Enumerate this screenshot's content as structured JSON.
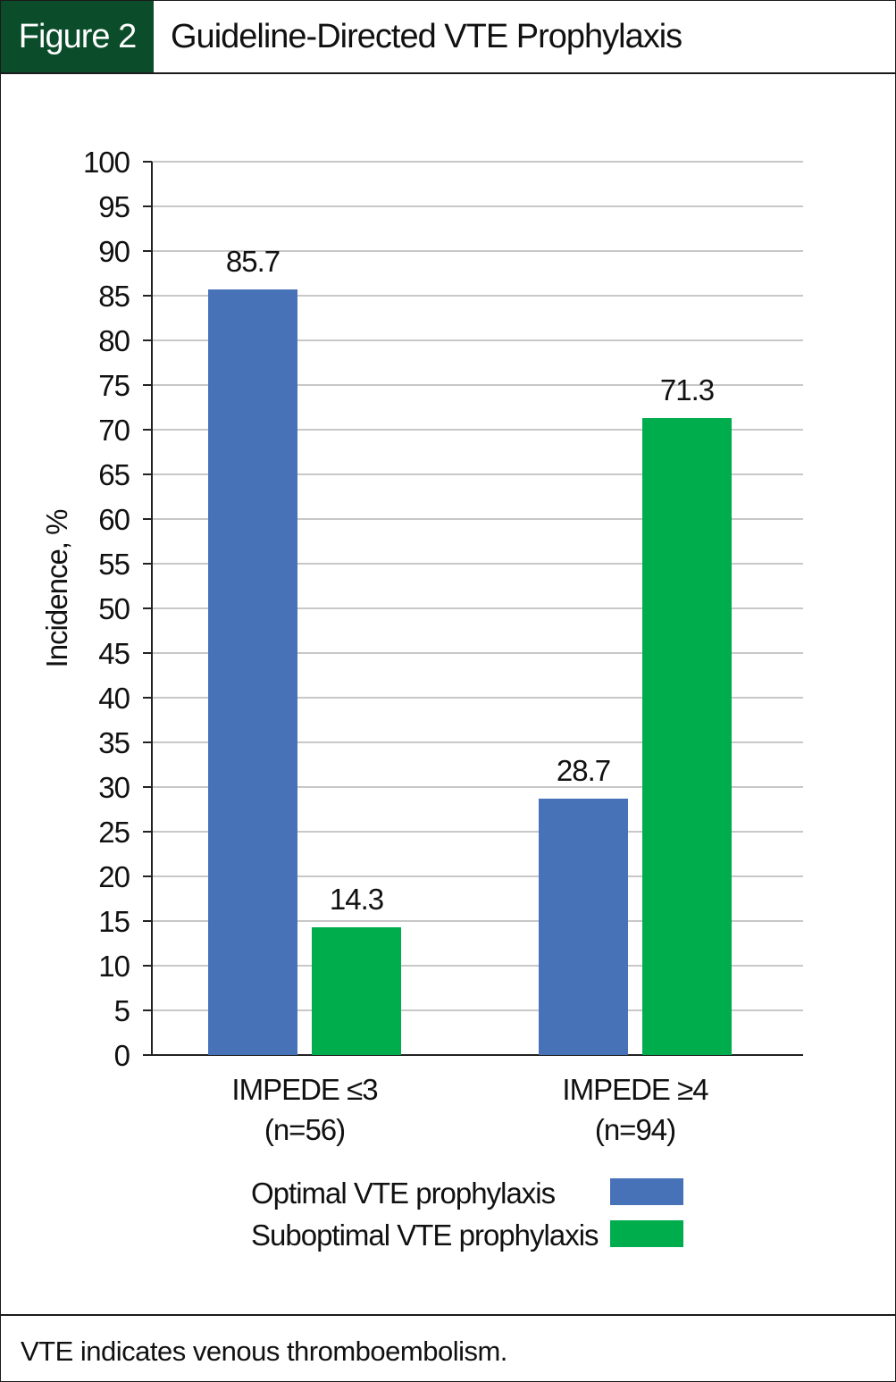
{
  "figure": {
    "label": "Figure 2",
    "title": "Guideline-Directed VTE Prophylaxis",
    "footnote": "VTE indicates venous thromboembolism.",
    "label_bg": "#0b4d2a"
  },
  "chart_data": {
    "type": "bar",
    "title": "Guideline-Directed VTE Prophylaxis",
    "ylabel": "Incidence, %",
    "xlabel": "",
    "ylim": [
      0,
      100
    ],
    "ytick_step": 5,
    "grid": true,
    "legend_position": "bottom",
    "categories": [
      {
        "line1": "IMPEDE ≤3",
        "line2": "(n=56)"
      },
      {
        "line1": "IMPEDE ≥4",
        "line2": "(n=94)"
      }
    ],
    "series": [
      {
        "name": "Optimal VTE prophylaxis",
        "color": "#4872b8",
        "values": [
          85.7,
          28.7
        ],
        "labels": [
          "85.7",
          "28.7"
        ]
      },
      {
        "name": "Suboptimal VTE prophylaxis",
        "color": "#00ad4d",
        "values": [
          14.3,
          71.3
        ],
        "labels": [
          "14.3",
          "71.3"
        ]
      }
    ]
  }
}
